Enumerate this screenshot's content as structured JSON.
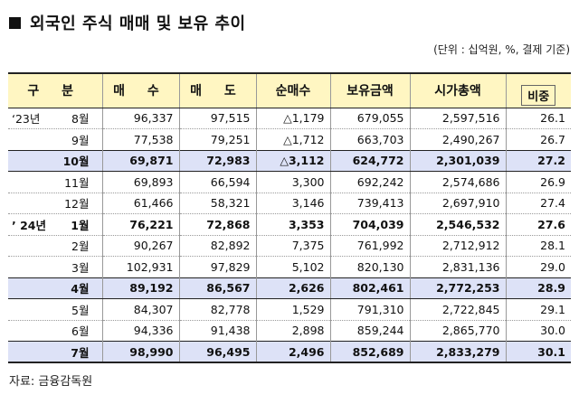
{
  "title": "외국인 주식 매매 및 보유 추이",
  "unit_note": "(단위 : 십억원, %, 결제 기준)",
  "headers": {
    "period": "구 분",
    "buy": "매 수",
    "sell": "매 도",
    "net": "순매수",
    "holdings": "보유금액",
    "market_cap": "시가총액",
    "ratio": "비중"
  },
  "rows": [
    {
      "year": "‘23년",
      "month": "8월",
      "buy": "96,337",
      "sell": "97,515",
      "net": "△1,179",
      "holdings": "679,055",
      "market_cap": "2,597,516",
      "ratio": "26.1"
    },
    {
      "year": "",
      "month": "9월",
      "buy": "77,538",
      "sell": "79,251",
      "net": "△1,712",
      "holdings": "663,703",
      "market_cap": "2,490,267",
      "ratio": "26.7"
    },
    {
      "year": "",
      "month": "10월",
      "buy": "69,871",
      "sell": "72,983",
      "net": "△3,112",
      "holdings": "624,772",
      "market_cap": "2,301,039",
      "ratio": "27.2"
    },
    {
      "year": "",
      "month": "11월",
      "buy": "69,893",
      "sell": "66,594",
      "net": "3,300",
      "holdings": "692,242",
      "market_cap": "2,574,686",
      "ratio": "26.9"
    },
    {
      "year": "",
      "month": "12월",
      "buy": "61,466",
      "sell": "58,321",
      "net": "3,146",
      "holdings": "739,413",
      "market_cap": "2,697,910",
      "ratio": "27.4"
    },
    {
      "year": "’ 24년",
      "month": "1월",
      "buy": "76,221",
      "sell": "72,868",
      "net": "3,353",
      "holdings": "704,039",
      "market_cap": "2,546,532",
      "ratio": "27.6"
    },
    {
      "year": "",
      "month": "2월",
      "buy": "90,267",
      "sell": "82,892",
      "net": "7,375",
      "holdings": "761,992",
      "market_cap": "2,712,912",
      "ratio": "28.1"
    },
    {
      "year": "",
      "month": "3월",
      "buy": "102,931",
      "sell": "97,829",
      "net": "5,102",
      "holdings": "820,130",
      "market_cap": "2,831,136",
      "ratio": "29.0"
    },
    {
      "year": "",
      "month": "4월",
      "buy": "89,192",
      "sell": "86,567",
      "net": "2,626",
      "holdings": "802,461",
      "market_cap": "2,772,253",
      "ratio": "28.9"
    },
    {
      "year": "",
      "month": "5월",
      "buy": "84,307",
      "sell": "82,778",
      "net": "1,529",
      "holdings": "791,310",
      "market_cap": "2,722,845",
      "ratio": "29.1"
    },
    {
      "year": "",
      "month": "6월",
      "buy": "94,336",
      "sell": "91,438",
      "net": "2,898",
      "holdings": "859,244",
      "market_cap": "2,865,770",
      "ratio": "30.0"
    },
    {
      "year": "",
      "month": "7월",
      "buy": "98,990",
      "sell": "96,495",
      "net": "2,496",
      "holdings": "852,689",
      "market_cap": "2,833,279",
      "ratio": "30.1"
    }
  ],
  "source": "자료: 금융감독원"
}
